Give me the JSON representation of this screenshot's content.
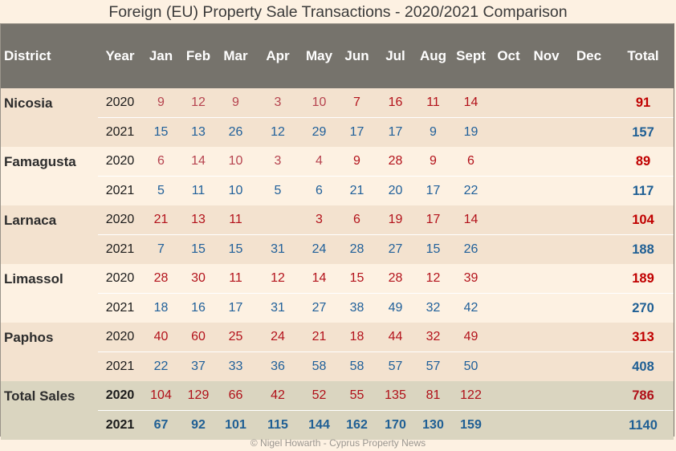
{
  "title": "Foreign (EU) Property Sale Transactions - 2020/2021 Comparison",
  "columns": [
    "District",
    "Year",
    "Jan",
    "Feb",
    "Mar",
    "Apr",
    "May",
    "Jun",
    "Jul",
    "Aug",
    "Sept",
    "Oct",
    "Nov",
    "Dec",
    "Total"
  ],
  "districts": [
    {
      "name": "Nicosia",
      "rows": [
        {
          "year": "2020",
          "months": [
            "9",
            "12",
            "9",
            "3",
            "10",
            "7",
            "16",
            "11",
            "14",
            "",
            "",
            ""
          ],
          "total": "91"
        },
        {
          "year": "2021",
          "months": [
            "15",
            "13",
            "26",
            "12",
            "29",
            "17",
            "17",
            "9",
            "19",
            "",
            "",
            ""
          ],
          "total": "157"
        }
      ]
    },
    {
      "name": "Famagusta",
      "rows": [
        {
          "year": "2020",
          "months": [
            "6",
            "14",
            "10",
            "3",
            "4",
            "9",
            "28",
            "9",
            "6",
            "",
            "",
            ""
          ],
          "total": "89"
        },
        {
          "year": "2021",
          "months": [
            "5",
            "11",
            "10",
            "5",
            "6",
            "21",
            "20",
            "17",
            "22",
            "",
            "",
            ""
          ],
          "total": "117"
        }
      ]
    },
    {
      "name": "Larnaca",
      "rows": [
        {
          "year": "2020",
          "months": [
            "21",
            "13",
            "11",
            "",
            "3",
            "6",
            "19",
            "17",
            "14",
            "",
            "",
            ""
          ],
          "total": "104"
        },
        {
          "year": "2021",
          "months": [
            "7",
            "15",
            "15",
            "31",
            "24",
            "28",
            "27",
            "15",
            "26",
            "",
            "",
            ""
          ],
          "total": "188"
        }
      ]
    },
    {
      "name": "Limassol",
      "rows": [
        {
          "year": "2020",
          "months": [
            "28",
            "30",
            "11",
            "12",
            "14",
            "15",
            "28",
            "12",
            "39",
            "",
            "",
            ""
          ],
          "total": "189"
        },
        {
          "year": "2021",
          "months": [
            "18",
            "16",
            "17",
            "31",
            "27",
            "38",
            "49",
            "32",
            "42",
            "",
            "",
            ""
          ],
          "total": "270"
        }
      ]
    },
    {
      "name": "Paphos",
      "rows": [
        {
          "year": "2020",
          "months": [
            "40",
            "60",
            "25",
            "24",
            "21",
            "18",
            "44",
            "32",
            "49",
            "",
            "",
            ""
          ],
          "total": "313"
        },
        {
          "year": "2021",
          "months": [
            "22",
            "37",
            "33",
            "36",
            "58",
            "58",
            "57",
            "57",
            "50",
            "",
            "",
            ""
          ],
          "total": "408"
        }
      ]
    }
  ],
  "totals": {
    "name": "Total Sales",
    "rows": [
      {
        "year": "2020",
        "months": [
          "104",
          "129",
          "66",
          "42",
          "52",
          "55",
          "135",
          "81",
          "122",
          "",
          "",
          ""
        ],
        "total": "786"
      },
      {
        "year": "2021",
        "months": [
          "67",
          "92",
          "101",
          "115",
          "144",
          "162",
          "170",
          "130",
          "159",
          "",
          "",
          ""
        ],
        "total": "1140"
      }
    ]
  },
  "footer": "© Nigel Howarth - Cyprus Property News",
  "colors": {
    "header_bg": "#76736c",
    "band_a": "#f3e2cf",
    "band_b": "#fdf1e2",
    "totals_bg": "#dad5c0",
    "value_2020": "#b3121b",
    "value_2021": "#1f5f94"
  }
}
